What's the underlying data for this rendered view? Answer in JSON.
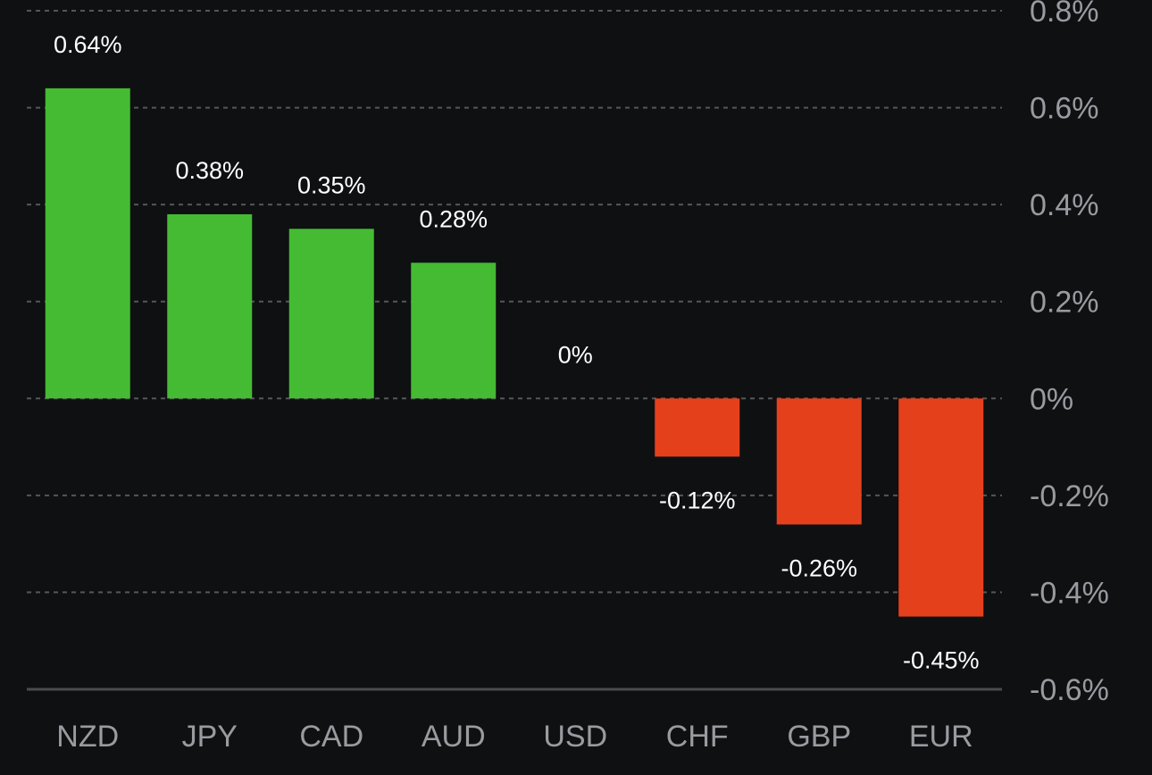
{
  "chart_data": {
    "type": "bar",
    "categories": [
      "NZD",
      "JPY",
      "CAD",
      "AUD",
      "USD",
      "CHF",
      "GBP",
      "EUR"
    ],
    "values": [
      0.64,
      0.38,
      0.35,
      0.28,
      0,
      -0.12,
      -0.26,
      -0.45
    ],
    "data_labels": [
      "0.64%",
      "0.38%",
      "0.35%",
      "0.28%",
      "0%",
      "-0.12%",
      "-0.26%",
      "-0.45%"
    ],
    "y_ticks": [
      0.8,
      0.6,
      0.4,
      0.2,
      0,
      -0.2,
      -0.4,
      -0.6
    ],
    "y_tick_labels": [
      "0.8%",
      "0.6%",
      "0.4%",
      "0.2%",
      "0%",
      "-0.2%",
      "-0.4%",
      "-0.6%"
    ],
    "ylim": [
      -0.6,
      0.8
    ],
    "y_axis_position": "right",
    "grid": true,
    "title": "",
    "xlabel": "",
    "ylabel": "",
    "colors": {
      "positive": "#44bb33",
      "negative": "#e5401c",
      "background": "#0f1012",
      "grid": "#55565a",
      "axis": "#4a4b4f",
      "tick_text": "#9a9ba0",
      "value_text": "#ffffff"
    }
  }
}
